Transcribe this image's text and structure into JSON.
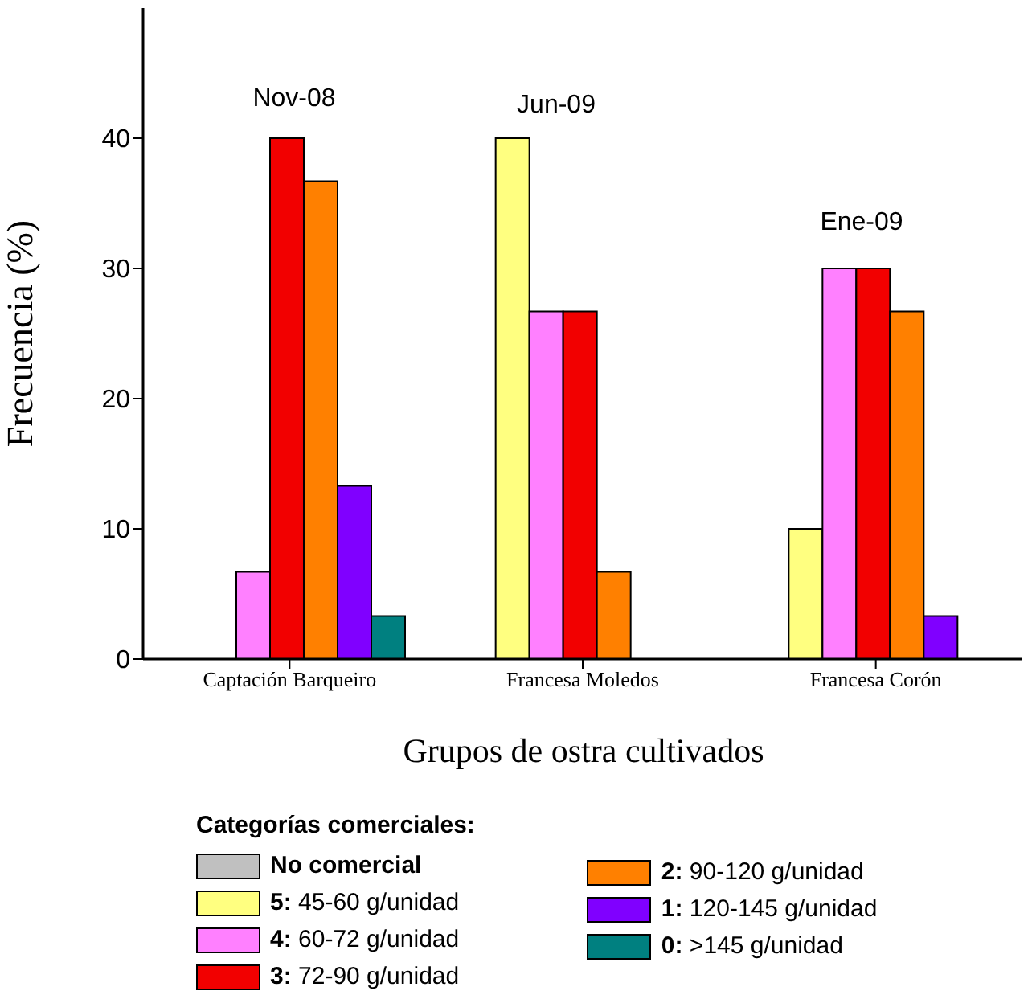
{
  "chart_data": {
    "type": "bar",
    "categories": [
      "Captación Barqueiro",
      "Francesa Moledos",
      "Francesa Corón"
    ],
    "xlabel": "Grupos de ostra cultivados",
    "ylabel": "Frecuencia (%)",
    "legend_title": "Categorías comerciales:",
    "series": [
      {
        "name": "No comercial",
        "color": "#c0c0c0",
        "values": [
          0,
          0,
          0
        ]
      },
      {
        "name": "5: 45-60 g/unidad",
        "color": "#ffff80",
        "values": [
          0,
          40,
          10
        ]
      },
      {
        "name": "4: 60-72 g/unidad",
        "color": "#ff80ff",
        "values": [
          6.7,
          26.7,
          30
        ]
      },
      {
        "name": "3: 72-90 g/unidad",
        "color": "#f20000",
        "values": [
          40,
          26.7,
          30
        ]
      },
      {
        "name": "2: 90-120 g/unidad",
        "color": "#ff8000",
        "values": [
          36.7,
          6.7,
          26.7
        ]
      },
      {
        "name": "1: 120-145 g/unidad",
        "color": "#8000ff",
        "values": [
          13.3,
          0,
          3.3
        ]
      },
      {
        "name": "0: >145 g/unidad",
        "color": "#008080",
        "values": [
          3.3,
          0,
          0
        ]
      }
    ],
    "annotations": [
      "Nov-08",
      "Jun-09",
      "Ene-09"
    ],
    "ylim": [
      0,
      50
    ],
    "yticks": [
      0,
      10,
      20,
      30,
      40
    ],
    "grid": false,
    "legend": "bottom"
  }
}
